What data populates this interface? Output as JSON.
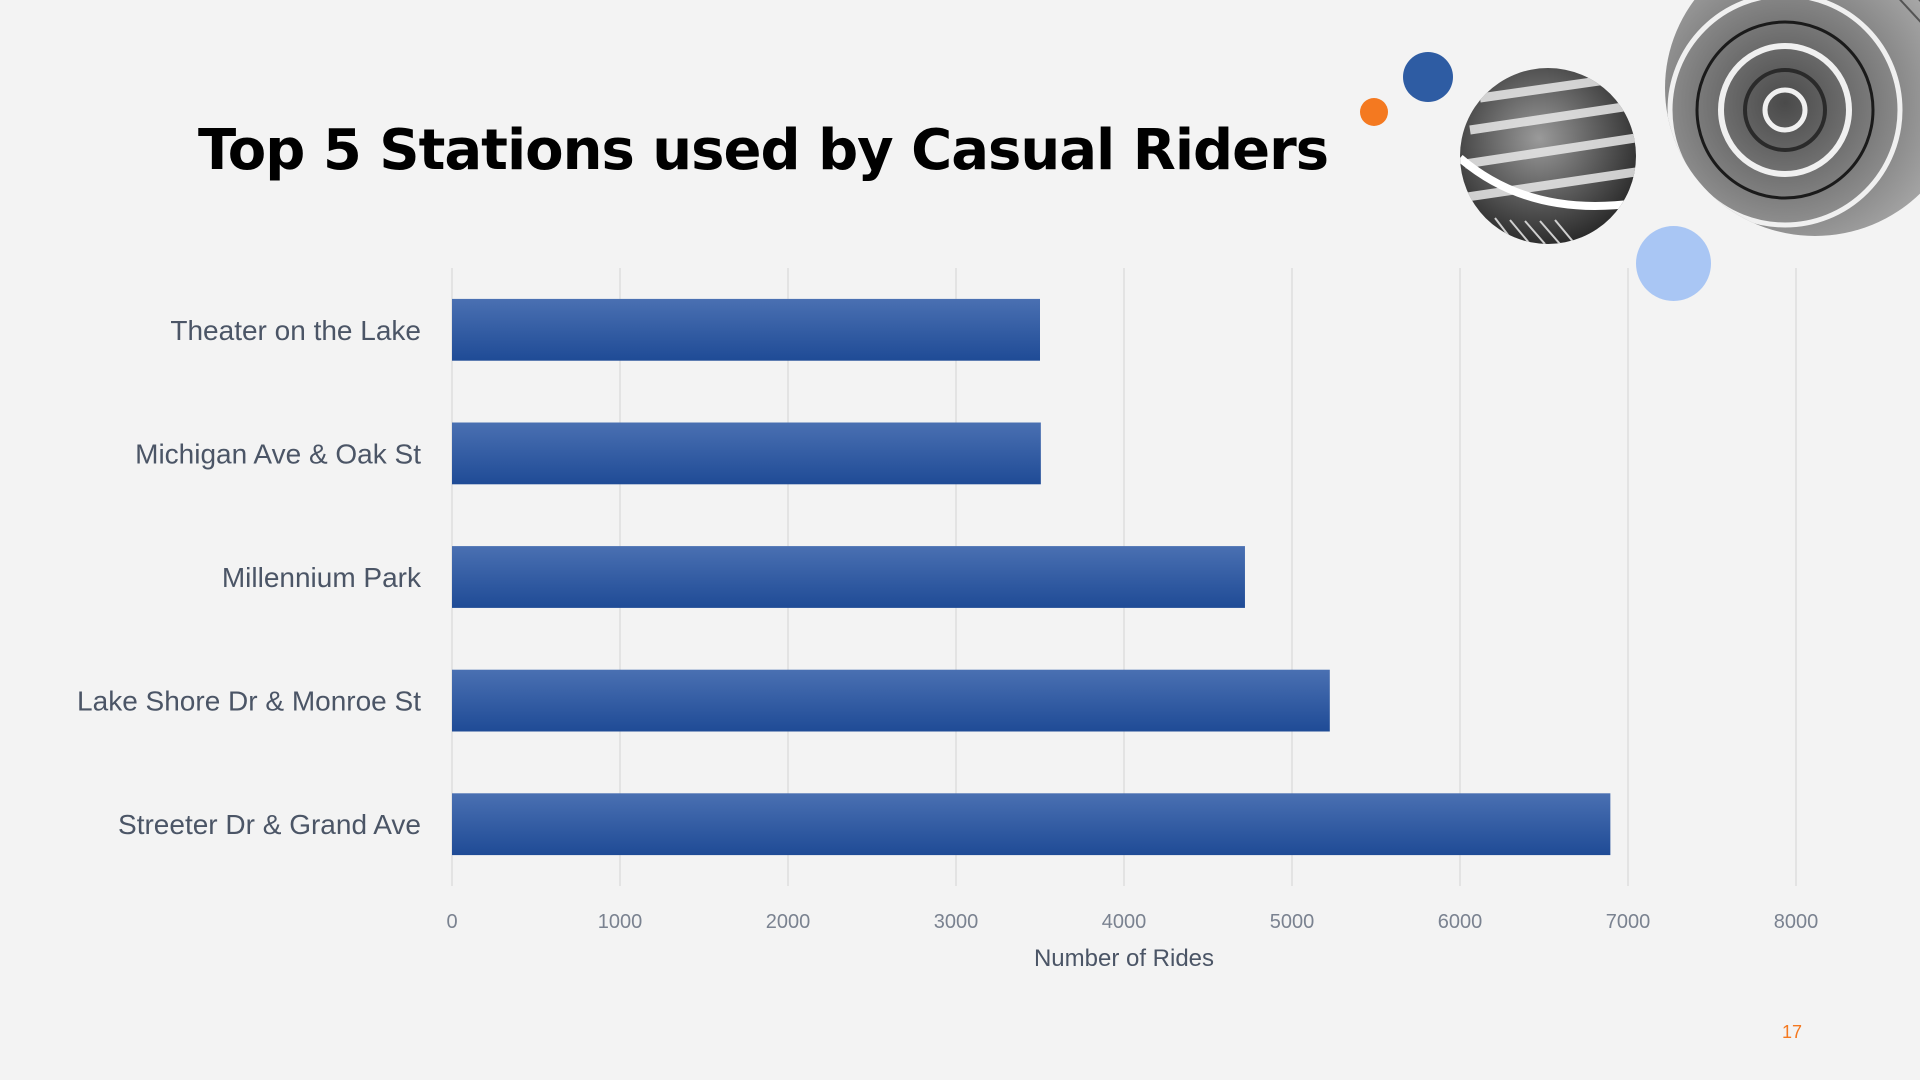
{
  "slide": {
    "title": "Top 5 Stations used by Casual Riders",
    "page_number": "17"
  },
  "colors": {
    "bar_top": "#4a70b2",
    "bar_bottom": "#1f4b96",
    "grid": "#dedede",
    "accent_orange": "#f47920",
    "accent_blue": "#2e5ca3",
    "accent_light_blue": "#a9c6f4"
  },
  "decorations": [
    "orange-dot",
    "blue-dot",
    "light-blue-dot",
    "staircase-photo",
    "spiral-staircase-photo"
  ],
  "chart_data": {
    "type": "bar",
    "orientation": "horizontal",
    "categories": [
      "Theater on the Lake",
      "Michigan Ave & Oak St",
      "Millennium Park",
      "Lake Shore Dr & Monroe St",
      "Streeter Dr & Grand Ave"
    ],
    "values": [
      3500,
      3505,
      4720,
      5225,
      6895
    ],
    "xlabel": "Number of Rides",
    "ylabel": "",
    "xlim": [
      0,
      8000
    ],
    "xticks": [
      "0",
      "1000",
      "2000",
      "3000",
      "4000",
      "5000",
      "6000",
      "7000",
      "8000"
    ],
    "grid": true,
    "legend": "none"
  }
}
